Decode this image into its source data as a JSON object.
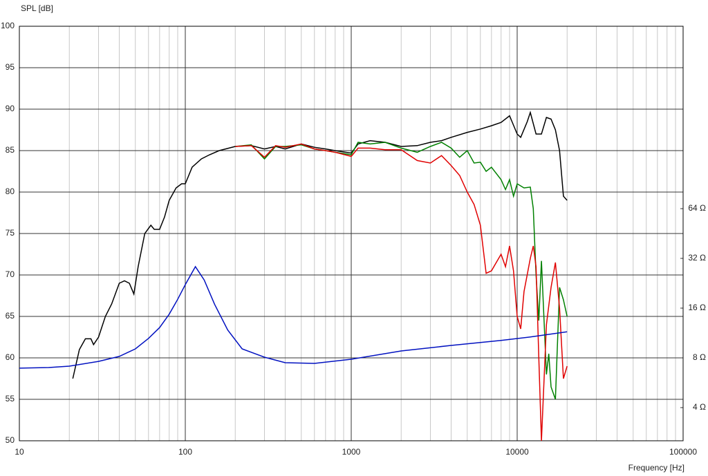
{
  "chart_data": {
    "type": "line",
    "ylabel": "SPL [dB]",
    "xlabel": "Frequency [Hz]",
    "xscale": "log",
    "xlim": [
      10,
      100000
    ],
    "xticks": [
      10,
      100,
      1000,
      10000,
      100000
    ],
    "ylim": [
      50,
      100
    ],
    "yticks": [
      100,
      95,
      90,
      85,
      80,
      75,
      70,
      65,
      60,
      55,
      50
    ],
    "y2scale": "log",
    "y2lim": [
      2.52,
      812.7
    ],
    "y2ticks": [
      {
        "value": 4,
        "label": "4 Ω"
      },
      {
        "value": 8,
        "label": "8 Ω"
      },
      {
        "value": 16,
        "label": "16 Ω"
      },
      {
        "value": 32,
        "label": "32 Ω"
      },
      {
        "value": 64,
        "label": "64 Ω"
      }
    ],
    "grid": true,
    "minor_grid": true,
    "series": [
      {
        "color": "#000000",
        "x": [
          21,
          23,
          25,
          27,
          28,
          30,
          33,
          36,
          40,
          43,
          46,
          49,
          52,
          57,
          62,
          65,
          70,
          75,
          80,
          88,
          95,
          100,
          110,
          125,
          140,
          160,
          200,
          250,
          300,
          350,
          400,
          500,
          600,
          700,
          800,
          1000,
          1100,
          1300,
          1600,
          2000,
          2500,
          3000,
          3500,
          4000,
          5000,
          6000,
          7000,
          8000,
          9000,
          10000,
          10500,
          11500,
          12000,
          13000,
          14000,
          15000,
          16000,
          17000,
          18000,
          19000,
          20000
        ],
        "values": [
          57.5,
          61,
          62.3,
          62.3,
          61.6,
          62.5,
          65,
          66.5,
          69,
          69.3,
          69,
          67.7,
          71,
          75,
          76,
          75.5,
          75.5,
          77,
          79,
          80.5,
          81,
          81,
          83,
          84,
          84.5,
          85,
          85.5,
          85.6,
          85.2,
          85.5,
          85.2,
          85.8,
          85.4,
          85.2,
          85.0,
          84.7,
          85.8,
          86.2,
          86.0,
          85.5,
          85.6,
          86.0,
          86.2,
          86.6,
          87.2,
          87.6,
          88.0,
          88.4,
          89.2,
          87,
          86.6,
          88.5,
          89.6,
          87,
          87,
          89,
          88.8,
          87.5,
          85,
          79.5,
          79
        ]
      },
      {
        "color": "#008000",
        "x": [
          200,
          250,
          300,
          350,
          400,
          500,
          600,
          700,
          800,
          1000,
          1100,
          1300,
          1600,
          2000,
          2500,
          3000,
          3500,
          4000,
          4500,
          5000,
          5500,
          6000,
          6500,
          7000,
          8000,
          8500,
          9000,
          9500,
          10000,
          11000,
          12000,
          12500,
          13000,
          13500,
          14000,
          15000,
          15500,
          16000,
          17000,
          18000,
          19000,
          20000
        ],
        "values": [
          85.5,
          85.7,
          84,
          85.5,
          85.5,
          85.7,
          85.2,
          85.0,
          84.8,
          84.5,
          86,
          85.8,
          86.0,
          85.3,
          84.8,
          85.5,
          86,
          85.3,
          84.2,
          85,
          83.5,
          83.6,
          82.5,
          83.0,
          81.5,
          80.3,
          81.5,
          79.5,
          81,
          80.5,
          80.6,
          78,
          70,
          64.5,
          71.7,
          58,
          60.5,
          56.5,
          55,
          68.5,
          67,
          65
        ]
      },
      {
        "color": "#e00000",
        "x": [
          200,
          250,
          300,
          350,
          400,
          500,
          600,
          700,
          800,
          1000,
          1100,
          1300,
          1600,
          2000,
          2500,
          3000,
          3500,
          4000,
          4500,
          5000,
          5500,
          6000,
          6500,
          7000,
          8000,
          8500,
          9000,
          9500,
          10000,
          10500,
          11000,
          12000,
          12500,
          13000,
          13500,
          14000,
          15000,
          16000,
          17000,
          18000,
          19000,
          20000
        ],
        "values": [
          85.5,
          85.6,
          84.2,
          85.6,
          85.4,
          85.8,
          85.2,
          85.0,
          84.8,
          84.3,
          85.3,
          85.3,
          85.1,
          85.1,
          83.8,
          83.5,
          84.4,
          83.2,
          82,
          80,
          78.5,
          76,
          70.2,
          70.5,
          72.5,
          71,
          73.5,
          70.5,
          65,
          63.5,
          68,
          72,
          73.5,
          71,
          60,
          50,
          64,
          68.5,
          71.5,
          66,
          57.5,
          59
        ]
      },
      {
        "color": "#0010c0",
        "axis": "y2",
        "x": [
          10,
          15,
          20,
          30,
          40,
          50,
          60,
          70,
          80,
          90,
          100,
          115,
          130,
          150,
          180,
          220,
          300,
          400,
          600,
          1000,
          2000,
          4000,
          8000,
          12000,
          20000
        ],
        "values": [
          6.93,
          6.99,
          7.13,
          7.62,
          8.16,
          9.07,
          10.5,
          12.2,
          14.7,
          18.1,
          22.2,
          28.5,
          23.7,
          16.9,
          11.8,
          9.07,
          8.08,
          7.48,
          7.41,
          7.85,
          8.81,
          9.51,
          10.2,
          10.7,
          11.5
        ]
      }
    ]
  }
}
